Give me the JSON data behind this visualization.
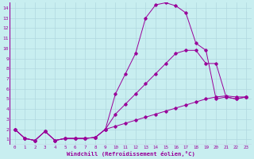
{
  "bg_color": "#c8eef0",
  "grid_color": "#b0d8e0",
  "line_color": "#990099",
  "xlabel": "Windchill (Refroidissement éolien,°C)",
  "xlim": [
    -0.5,
    23.5
  ],
  "ylim": [
    0.5,
    14.5
  ],
  "xticks": [
    0,
    1,
    2,
    3,
    4,
    5,
    6,
    7,
    8,
    9,
    10,
    11,
    12,
    13,
    14,
    15,
    16,
    17,
    18,
    19,
    20,
    21,
    22,
    23
  ],
  "yticks": [
    1,
    2,
    3,
    4,
    5,
    6,
    7,
    8,
    9,
    10,
    11,
    12,
    13,
    14
  ],
  "line_top_x": [
    0,
    1,
    2,
    3,
    4,
    5,
    6,
    7,
    8,
    9,
    10,
    11,
    12,
    13,
    14,
    15,
    16,
    17,
    18,
    19,
    20,
    21,
    22,
    23
  ],
  "line_top_y": [
    2.0,
    1.1,
    0.9,
    1.8,
    0.9,
    1.1,
    1.1,
    1.1,
    1.2,
    2.0,
    5.5,
    7.5,
    9.5,
    13.0,
    14.3,
    14.5,
    14.2,
    13.5,
    10.5,
    9.8,
    5.0,
    5.2,
    5.0,
    5.2
  ],
  "line_mid_x": [
    0,
    1,
    2,
    3,
    4,
    5,
    6,
    7,
    8,
    9,
    10,
    11,
    12,
    13,
    14,
    15,
    16,
    17,
    18,
    19,
    20,
    21,
    22,
    23
  ],
  "line_mid_y": [
    2.0,
    1.1,
    0.9,
    1.8,
    0.9,
    1.1,
    1.1,
    1.1,
    1.2,
    2.0,
    3.5,
    4.5,
    5.5,
    6.5,
    7.5,
    8.5,
    9.5,
    9.8,
    9.8,
    8.5,
    8.5,
    5.2,
    5.0,
    5.2
  ],
  "line_bot_x": [
    0,
    1,
    2,
    3,
    4,
    5,
    6,
    7,
    8,
    9,
    10,
    11,
    12,
    13,
    14,
    15,
    16,
    17,
    18,
    19,
    20,
    21,
    22,
    23
  ],
  "line_bot_y": [
    2.0,
    1.1,
    0.9,
    1.8,
    0.9,
    1.1,
    1.1,
    1.1,
    1.2,
    2.0,
    2.3,
    2.6,
    2.9,
    3.2,
    3.5,
    3.8,
    4.1,
    4.4,
    4.7,
    5.0,
    5.2,
    5.3,
    5.2,
    5.2
  ]
}
